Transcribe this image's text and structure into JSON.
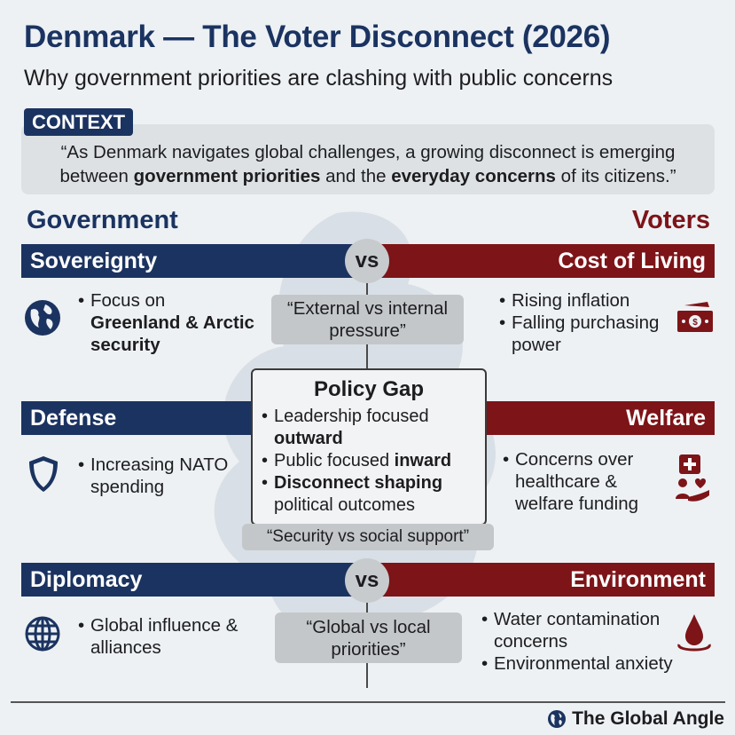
{
  "header": {
    "title": "Denmark — The Voter Disconnect (2026)",
    "subtitle": "Why government priorities are clashing with public concerns"
  },
  "context": {
    "badge": "CONTEXT",
    "quote_parts": [
      "“As Denmark navigates global challenges, a growing disconnect is emerging between ",
      "government priorities",
      " and the ",
      "everyday concerns",
      " of its citizens.”"
    ]
  },
  "columns": {
    "left": "Government",
    "right": "Voters"
  },
  "vs_label": "vs",
  "rows": [
    {
      "left_title": "Sovereignty",
      "right_title": "Cost of Living",
      "left_icon": "globe-icon",
      "right_icon": "money-icon",
      "left_items": [
        [
          "Focus on ",
          "Greenland & Arctic security"
        ]
      ],
      "right_items": [
        "Rising inflation",
        "Falling purchasing power"
      ],
      "quote": "“External vs internal pressure”"
    },
    {
      "left_title": "Defense",
      "right_title": "Welfare",
      "left_icon": "shield-icon",
      "right_icon": "healthcare-icon",
      "left_items": [
        "Increasing NATO spending"
      ],
      "right_items": [
        "Concerns over healthcare & welfare funding"
      ],
      "quote": "“Security vs social support”"
    },
    {
      "left_title": "Diplomacy",
      "right_title": "Environment",
      "left_icon": "globe-grid-icon",
      "right_icon": "water-drop-icon",
      "left_items": [
        "Global influence & alliances"
      ],
      "right_items": [
        "Water contamination concerns",
        "Environmental anxiety"
      ],
      "quote": "“Global vs local priorities”"
    }
  ],
  "policy_gap": {
    "title": "Policy Gap",
    "items": [
      [
        "Leadership focused ",
        "outward"
      ],
      [
        "Public focused ",
        "inward"
      ],
      [
        "Disconnect shaping",
        " political outcomes"
      ]
    ]
  },
  "footer": {
    "brand": "The Global Angle",
    "icon": "globe-icon"
  },
  "colors": {
    "government": "#1b3360",
    "voters": "#7d1418",
    "background": "#edf1f4",
    "quote_box": "#c4c7ca"
  }
}
